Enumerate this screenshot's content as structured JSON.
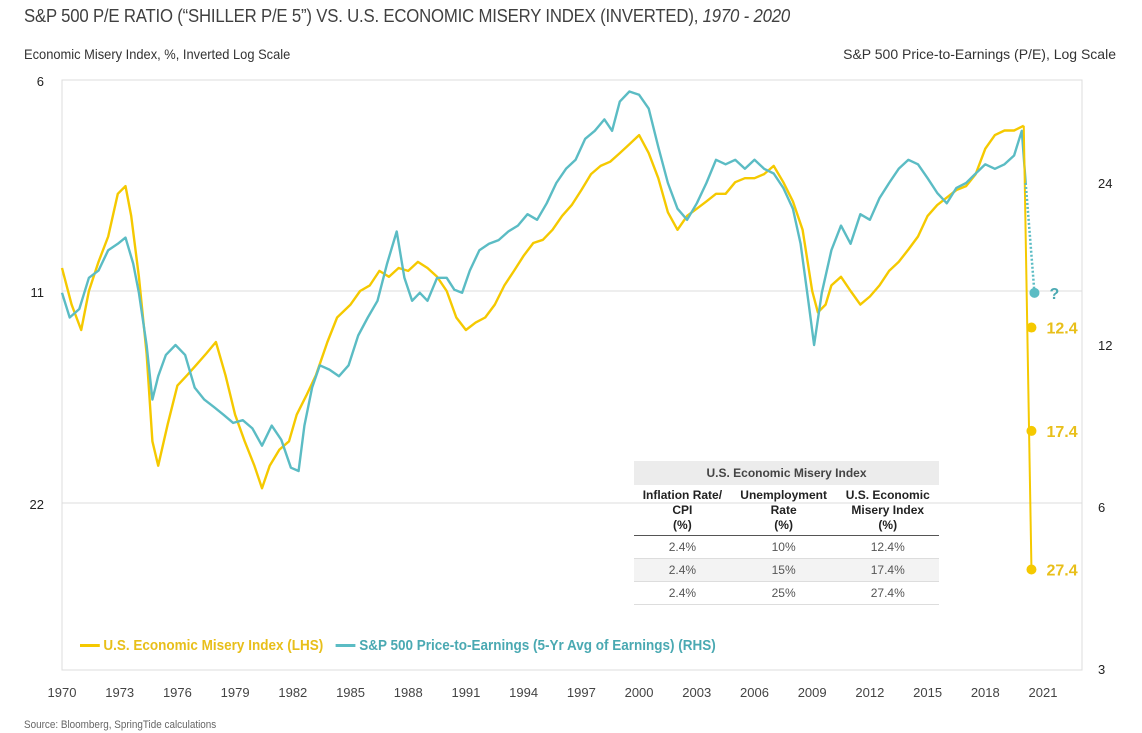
{
  "chart_data": {
    "type": "line",
    "title": "S&P 500 P/E RATIO (“SHILLER P/E 5”) VS. U.S. ECONOMIC MISERY INDEX (INVERTED), ",
    "title_years": "1970 - 2020",
    "ylabel_left": "Economic Misery Index, %, Inverted Log Scale",
    "ylabel_right": "S&P 500 Price-to-Earnings (P/E), Log Scale",
    "source": "Source: Bloomberg, SpringTide calculations",
    "x_ticks": [
      "1970",
      "1973",
      "1976",
      "1979",
      "1982",
      "1985",
      "1988",
      "1991",
      "1994",
      "1997",
      "2000",
      "2003",
      "2006",
      "2009",
      "2012",
      "2015",
      "2018",
      "2021"
    ],
    "xlim": [
      1970,
      2021
    ],
    "y_left": {
      "scale": "log",
      "inverted": true,
      "ticks": [
        6,
        11,
        22
      ]
    },
    "y_right": {
      "scale": "log",
      "inverted": false,
      "ticks": [
        24,
        12,
        6,
        3
      ]
    },
    "grid": "horizontal",
    "legend_position": "bottom-left",
    "series": [
      {
        "name": "U.S. Economic Misery Index (LHS)",
        "axis": "left",
        "color": "#f5c900",
        "x": [
          1970.0,
          1970.5,
          1971.0,
          1971.4,
          1971.9,
          1972.4,
          1972.9,
          1973.3,
          1973.6,
          1974.0,
          1974.4,
          1974.7,
          1975.0,
          1975.5,
          1976.0,
          1976.5,
          1977.0,
          1977.5,
          1978.0,
          1978.5,
          1979.0,
          1979.5,
          1980.0,
          1980.4,
          1980.8,
          1981.3,
          1981.8,
          1982.2,
          1982.7,
          1983.2,
          1983.8,
          1984.3,
          1985.0,
          1985.5,
          1986.0,
          1986.5,
          1987.0,
          1987.5,
          1988.0,
          1988.5,
          1989.0,
          1989.5,
          1990.0,
          1990.5,
          1991.0,
          1991.5,
          1992.0,
          1992.5,
          1993.0,
          1993.5,
          1994.0,
          1994.5,
          1995.0,
          1995.5,
          1996.0,
          1996.5,
          1997.0,
          1997.5,
          1998.0,
          1998.5,
          1999.0,
          1999.5,
          2000.0,
          2000.5,
          2001.0,
          2001.5,
          2002.0,
          2002.5,
          2003.0,
          2003.5,
          2004.0,
          2004.5,
          2005.0,
          2005.5,
          2006.0,
          2006.5,
          2007.0,
          2007.5,
          2008.0,
          2008.5,
          2009.0,
          2009.3,
          2009.7,
          2010.0,
          2010.5,
          2011.0,
          2011.5,
          2012.0,
          2012.5,
          2013.0,
          2013.5,
          2014.0,
          2014.5,
          2015.0,
          2015.5,
          2016.0,
          2016.5,
          2017.0,
          2017.5,
          2018.0,
          2018.5,
          2019.0,
          2019.5,
          2020.0
        ],
        "values": [
          10.2,
          11.5,
          12.5,
          11.0,
          10.0,
          9.2,
          8.0,
          7.8,
          8.6,
          10.5,
          13.5,
          18.0,
          19.5,
          17.0,
          15.0,
          14.5,
          14.0,
          13.5,
          13.0,
          14.5,
          16.5,
          18.0,
          19.5,
          21.0,
          19.5,
          18.5,
          18.0,
          16.5,
          15.5,
          14.5,
          13.0,
          12.0,
          11.5,
          11.0,
          10.8,
          10.3,
          10.5,
          10.2,
          10.3,
          10.0,
          10.2,
          10.5,
          11.0,
          12.0,
          12.5,
          12.2,
          12.0,
          11.5,
          10.8,
          10.3,
          9.8,
          9.4,
          9.3,
          9.0,
          8.6,
          8.3,
          7.9,
          7.5,
          7.3,
          7.2,
          7.0,
          6.8,
          6.6,
          7.0,
          7.6,
          8.5,
          9.0,
          8.6,
          8.4,
          8.2,
          8.0,
          8.0,
          7.7,
          7.6,
          7.6,
          7.5,
          7.3,
          7.7,
          8.2,
          9.0,
          11.0,
          11.8,
          11.5,
          10.8,
          10.5,
          11.0,
          11.5,
          11.2,
          10.8,
          10.3,
          10.0,
          9.6,
          9.2,
          8.6,
          8.3,
          8.1,
          7.9,
          7.8,
          7.5,
          6.9,
          6.6,
          6.5,
          6.5,
          6.4
        ],
        "scenario_points": [
          {
            "x": 2020.4,
            "value": 12.4,
            "label": "12.4"
          },
          {
            "x": 2020.4,
            "value": 17.4,
            "label": "17.4"
          },
          {
            "x": 2020.4,
            "value": 27.4,
            "label": "27.4"
          }
        ]
      },
      {
        "name": "S&P 500 Price-to-Earnings (5-Yr Avg of Earnings) (RHS)",
        "axis": "right",
        "color": "#5bbcc4",
        "x": [
          1970.0,
          1970.4,
          1970.9,
          1971.4,
          1971.9,
          1972.4,
          1972.9,
          1973.3,
          1973.7,
          1974.0,
          1974.4,
          1974.7,
          1975.0,
          1975.4,
          1975.9,
          1976.4,
          1976.9,
          1977.4,
          1977.9,
          1978.4,
          1978.9,
          1979.4,
          1979.9,
          1980.4,
          1980.9,
          1981.4,
          1981.9,
          1982.3,
          1982.6,
          1983.0,
          1983.4,
          1983.9,
          1984.4,
          1984.9,
          1985.4,
          1985.9,
          1986.4,
          1986.9,
          1987.4,
          1987.8,
          1988.2,
          1988.6,
          1989.0,
          1989.5,
          1990.0,
          1990.4,
          1990.8,
          1991.2,
          1991.7,
          1992.2,
          1992.7,
          1993.2,
          1993.7,
          1994.2,
          1994.7,
          1995.2,
          1995.7,
          1996.2,
          1996.7,
          1997.2,
          1997.7,
          1998.2,
          1998.6,
          1999.0,
          1999.5,
          2000.0,
          2000.5,
          2001.0,
          2001.5,
          2002.0,
          2002.5,
          2003.0,
          2003.5,
          2004.0,
          2004.5,
          2005.0,
          2005.5,
          2006.0,
          2006.5,
          2007.0,
          2007.5,
          2008.0,
          2008.4,
          2008.8,
          2009.1,
          2009.5,
          2010.0,
          2010.5,
          2011.0,
          2011.5,
          2012.0,
          2012.5,
          2013.0,
          2013.5,
          2014.0,
          2014.5,
          2015.0,
          2015.5,
          2016.0,
          2016.5,
          2017.0,
          2017.5,
          2018.0,
          2018.5,
          2019.0,
          2019.5,
          2019.9,
          2020.1
        ],
        "values": [
          15.0,
          13.5,
          14.0,
          16.0,
          16.5,
          18.0,
          18.5,
          19.0,
          17.0,
          15.0,
          12.0,
          9.5,
          10.5,
          11.5,
          12.0,
          11.5,
          10.0,
          9.5,
          9.2,
          8.9,
          8.6,
          8.7,
          8.4,
          7.8,
          8.5,
          8.0,
          7.1,
          7.0,
          8.5,
          10.0,
          11.0,
          10.8,
          10.5,
          11.0,
          12.5,
          13.5,
          14.5,
          17.0,
          19.5,
          16.0,
          14.5,
          15.0,
          14.5,
          16.0,
          16.0,
          15.2,
          15.0,
          16.5,
          18.0,
          18.5,
          18.8,
          19.5,
          20.0,
          21.0,
          20.5,
          22.0,
          24.0,
          25.5,
          26.5,
          29.0,
          30.0,
          31.5,
          30.0,
          34.0,
          35.5,
          35.0,
          33.0,
          28.0,
          24.0,
          21.5,
          20.5,
          22.0,
          24.0,
          26.5,
          26.0,
          26.5,
          25.5,
          26.5,
          25.5,
          25.0,
          23.5,
          21.5,
          18.5,
          14.5,
          12.0,
          15.0,
          18.0,
          20.0,
          18.5,
          21.0,
          20.5,
          22.5,
          24.0,
          25.5,
          26.5,
          26.0,
          24.5,
          23.0,
          22.0,
          23.5,
          24.0,
          25.0,
          26.0,
          25.5,
          26.0,
          27.0,
          30.0,
          24.0
        ],
        "scenario_points": [
          {
            "x": 2020.4,
            "value": 15.0,
            "label": "?"
          }
        ]
      }
    ]
  },
  "table": {
    "title": "U.S. Economic Misery Index",
    "headers": [
      [
        "Inflation Rate/",
        "CPI",
        "(%)"
      ],
      [
        "Unemployment",
        "Rate",
        "(%)"
      ],
      [
        "U.S. Economic",
        "Misery Index",
        "(%)"
      ]
    ],
    "rows": [
      [
        "2.4%",
        "10%",
        "12.4%"
      ],
      [
        "2.4%",
        "15%",
        "17.4%"
      ],
      [
        "2.4%",
        "25%",
        "27.4%"
      ]
    ]
  }
}
